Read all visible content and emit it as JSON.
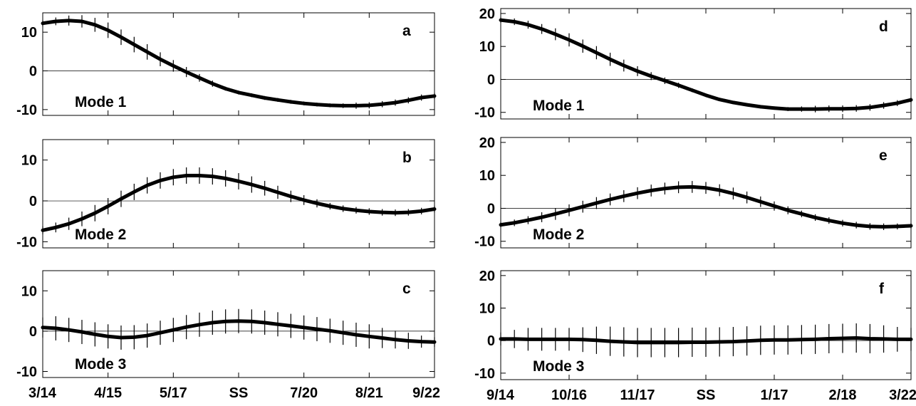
{
  "chart_data": [
    {
      "panel": "a",
      "label": "Mode 1",
      "type": "line",
      "xticklabels": [],
      "yticks": [
        -10,
        0,
        10
      ],
      "ylim": [
        -11.5,
        15
      ],
      "x": [
        0,
        1,
        2,
        3,
        4,
        5,
        6,
        7,
        8,
        9,
        10,
        11,
        12,
        13,
        14,
        15,
        16,
        17,
        18,
        19,
        20,
        21,
        22,
        23,
        24,
        25,
        26,
        27,
        28,
        29,
        30
      ],
      "values": [
        12.3,
        12.8,
        13.0,
        12.8,
        11.9,
        10.5,
        8.7,
        6.8,
        4.9,
        3.0,
        1.3,
        -0.3,
        -1.8,
        -3.3,
        -4.6,
        -5.6,
        -6.3,
        -7.0,
        -7.5,
        -8.0,
        -8.4,
        -8.7,
        -8.9,
        -9.0,
        -9.0,
        -8.9,
        -8.6,
        -8.2,
        -7.6,
        -6.9,
        -6.5
      ],
      "error": [
        0.8,
        1.0,
        1.3,
        1.6,
        1.8,
        2.0,
        2.0,
        2.0,
        2.0,
        1.8,
        1.5,
        1.3,
        1.0,
        0.8,
        0.5,
        0.5,
        0.5,
        0.5,
        0.5,
        0.5,
        0.5,
        0.5,
        0.5,
        0.6,
        0.8,
        0.8,
        0.8,
        0.8,
        0.8,
        0.8,
        0.8
      ]
    },
    {
      "panel": "b",
      "label": "Mode 2",
      "type": "line",
      "xticklabels": [],
      "yticks": [
        -10,
        0,
        10
      ],
      "ylim": [
        -11.5,
        15
      ],
      "x": [
        0,
        1,
        2,
        3,
        4,
        5,
        6,
        7,
        8,
        9,
        10,
        11,
        12,
        13,
        14,
        15,
        16,
        17,
        18,
        19,
        20,
        21,
        22,
        23,
        24,
        25,
        26,
        27,
        28,
        29,
        30
      ],
      "values": [
        -7.2,
        -6.5,
        -5.6,
        -4.4,
        -3.0,
        -1.3,
        0.5,
        2.2,
        3.8,
        5.0,
        5.8,
        6.2,
        6.2,
        6.0,
        5.5,
        4.8,
        4.0,
        3.1,
        2.1,
        1.1,
        0.2,
        -0.6,
        -1.3,
        -1.9,
        -2.3,
        -2.6,
        -2.8,
        -2.9,
        -2.8,
        -2.5,
        -2.0
      ],
      "error": [
        1.0,
        1.2,
        1.5,
        1.8,
        2.0,
        2.0,
        2.0,
        2.0,
        2.0,
        2.0,
        2.0,
        2.0,
        2.0,
        2.0,
        2.0,
        2.0,
        2.0,
        1.8,
        1.6,
        1.4,
        1.2,
        1.0,
        0.8,
        0.8,
        0.8,
        0.8,
        0.8,
        0.8,
        0.8,
        0.8,
        0.8
      ]
    },
    {
      "panel": "c",
      "label": "Mode 3",
      "type": "line",
      "xticklabels": [
        "3/14",
        "4/15",
        "5/17",
        "SS",
        "7/20",
        "8/21",
        "9/22"
      ],
      "yticks": [
        -10,
        0,
        10
      ],
      "ylim": [
        -11.5,
        15
      ],
      "x": [
        0,
        1,
        2,
        3,
        4,
        5,
        6,
        7,
        8,
        9,
        10,
        11,
        12,
        13,
        14,
        15,
        16,
        17,
        18,
        19,
        20,
        21,
        22,
        23,
        24,
        25,
        26,
        27,
        28,
        29,
        30
      ],
      "values": [
        0.9,
        0.7,
        0.3,
        -0.2,
        -0.8,
        -1.3,
        -1.6,
        -1.5,
        -1.1,
        -0.4,
        0.3,
        1.0,
        1.6,
        2.1,
        2.4,
        2.5,
        2.4,
        2.1,
        1.7,
        1.3,
        0.9,
        0.5,
        0.1,
        -0.4,
        -0.9,
        -1.3,
        -1.7,
        -2.1,
        -2.4,
        -2.6,
        -2.7
      ],
      "error": [
        2.5,
        3.0,
        3.0,
        3.0,
        3.0,
        3.0,
        3.0,
        3.0,
        3.0,
        3.0,
        3.0,
        3.0,
        3.0,
        3.0,
        3.0,
        3.0,
        3.0,
        3.0,
        3.0,
        3.0,
        3.0,
        3.0,
        3.0,
        3.0,
        3.0,
        3.0,
        2.5,
        2.2,
        2.0,
        1.5,
        1.2
      ]
    },
    {
      "panel": "d",
      "label": "Mode 1",
      "type": "line",
      "xticklabels": [],
      "yticks": [
        -10,
        0,
        10,
        20
      ],
      "ylim": [
        -12,
        21.5
      ],
      "x": [
        0,
        1,
        2,
        3,
        4,
        5,
        6,
        7,
        8,
        9,
        10,
        11,
        12,
        13,
        14,
        15,
        16,
        17,
        18,
        19,
        20,
        21,
        22,
        23,
        24,
        25,
        26,
        27,
        28,
        29,
        30
      ],
      "values": [
        18.0,
        17.5,
        16.6,
        15.3,
        13.7,
        12.0,
        10.1,
        8.1,
        6.1,
        4.2,
        2.5,
        1.0,
        -0.4,
        -1.8,
        -3.3,
        -4.8,
        -6.1,
        -7.0,
        -7.7,
        -8.3,
        -8.7,
        -9.0,
        -9.0,
        -9.0,
        -8.9,
        -8.9,
        -8.8,
        -8.5,
        -7.9,
        -7.2,
        -6.2
      ],
      "error": [
        0.8,
        1.0,
        1.2,
        1.5,
        1.8,
        2.0,
        2.0,
        2.0,
        2.0,
        1.8,
        1.5,
        1.2,
        1.0,
        0.8,
        0.6,
        0.5,
        0.5,
        0.5,
        0.5,
        0.5,
        0.5,
        0.6,
        0.8,
        1.0,
        1.0,
        1.0,
        1.0,
        1.0,
        1.0,
        0.9,
        0.8
      ]
    },
    {
      "panel": "e",
      "label": "Mode 2",
      "type": "line",
      "xticklabels": [],
      "yticks": [
        -10,
        0,
        10,
        20
      ],
      "ylim": [
        -12,
        21.5
      ],
      "x": [
        0,
        1,
        2,
        3,
        4,
        5,
        6,
        7,
        8,
        9,
        10,
        11,
        12,
        13,
        14,
        15,
        16,
        17,
        18,
        19,
        20,
        21,
        22,
        23,
        24,
        25,
        26,
        27,
        28,
        29,
        30
      ],
      "values": [
        -5.0,
        -4.4,
        -3.6,
        -2.7,
        -1.7,
        -0.6,
        0.5,
        1.6,
        2.7,
        3.7,
        4.6,
        5.4,
        6.0,
        6.4,
        6.5,
        6.2,
        5.5,
        4.5,
        3.3,
        2.0,
        0.7,
        -0.6,
        -1.7,
        -2.8,
        -3.7,
        -4.5,
        -5.1,
        -5.5,
        -5.6,
        -5.5,
        -5.3
      ],
      "error": [
        0.8,
        1.0,
        1.2,
        1.5,
        1.8,
        1.8,
        1.8,
        1.8,
        1.8,
        1.8,
        1.8,
        1.8,
        1.8,
        1.8,
        1.8,
        1.8,
        1.8,
        1.8,
        1.8,
        1.6,
        1.4,
        1.2,
        1.0,
        1.0,
        1.0,
        1.0,
        1.0,
        1.0,
        1.0,
        0.9,
        0.8
      ]
    },
    {
      "panel": "f",
      "label": "Mode 3",
      "type": "line",
      "xticklabels": [
        "9/14",
        "10/16",
        "11/17",
        "SS",
        "1/17",
        "2/18",
        "3/22"
      ],
      "yticks": [
        -10,
        0,
        10,
        20
      ],
      "ylim": [
        -12,
        21.5
      ],
      "x": [
        0,
        1,
        2,
        3,
        4,
        5,
        6,
        7,
        8,
        9,
        10,
        11,
        12,
        13,
        14,
        15,
        16,
        17,
        18,
        19,
        20,
        21,
        22,
        23,
        24,
        25,
        26,
        27,
        28,
        29,
        30
      ],
      "values": [
        0.5,
        0.5,
        0.4,
        0.4,
        0.4,
        0.4,
        0.3,
        0.1,
        -0.2,
        -0.4,
        -0.6,
        -0.6,
        -0.6,
        -0.6,
        -0.5,
        -0.5,
        -0.4,
        -0.3,
        -0.1,
        0.1,
        0.2,
        0.2,
        0.3,
        0.4,
        0.6,
        0.7,
        0.8,
        0.6,
        0.5,
        0.4,
        0.4
      ],
      "error": [
        2.0,
        2.8,
        3.5,
        3.5,
        3.5,
        3.5,
        3.8,
        4.2,
        4.5,
        4.5,
        4.5,
        4.5,
        4.5,
        4.5,
        4.5,
        4.5,
        4.5,
        4.5,
        4.5,
        4.5,
        4.5,
        4.5,
        4.5,
        4.5,
        4.5,
        4.5,
        4.5,
        4.5,
        4.2,
        3.8,
        3.5
      ]
    }
  ]
}
